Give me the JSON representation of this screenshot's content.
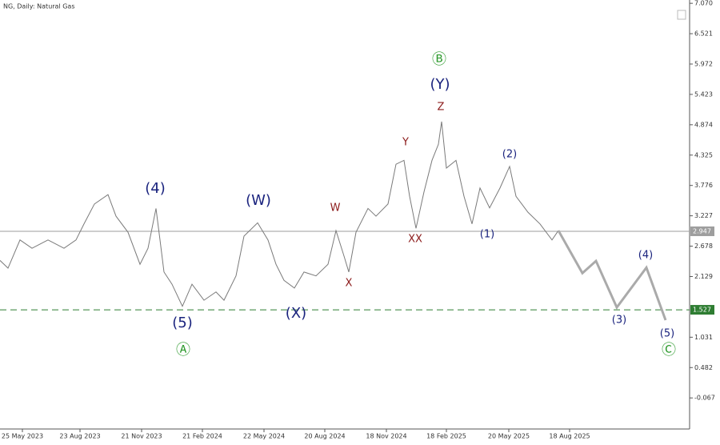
{
  "chart_data": {
    "type": "line",
    "title": "NG, Daily:  Natural Gas",
    "xlim": [
      0,
      862
    ],
    "ylim": [
      -0.6,
      7.13
    ],
    "xticks": [
      {
        "value": 28,
        "label": "25 May 2023"
      },
      {
        "value": 100,
        "label": "23 Aug 2023"
      },
      {
        "value": 177,
        "label": "21 Nov 2023"
      },
      {
        "value": 253,
        "label": "21 Feb 2024"
      },
      {
        "value": 330,
        "label": "22 May 2024"
      },
      {
        "value": 406,
        "label": "20 Aug 2024"
      },
      {
        "value": 483,
        "label": "18 Nov 2024"
      },
      {
        "value": 558,
        "label": "18 Feb 2025"
      },
      {
        "value": 636,
        "label": "20 May 2025"
      },
      {
        "value": 712,
        "label": "18 Aug 2025"
      }
    ],
    "yticks": [
      {
        "value": 7.07,
        "label": "7.070"
      },
      6.521,
      5.972,
      5.423,
      4.874,
      4.325,
      3.776,
      3.227,
      2.678,
      2.129,
      1.031,
      0.482,
      -0.067
    ],
    "series": [
      {
        "color": "#7a7a7a",
        "width": 1,
        "x": [
          0,
          10,
          25,
          40,
          60,
          80,
          95,
          105,
          118,
          135,
          145,
          160,
          175,
          185,
          195,
          200,
          205,
          215,
          228,
          240,
          255,
          270,
          280,
          295,
          305,
          322,
          335,
          345,
          355,
          368,
          380,
          395,
          410,
          420,
          430,
          436,
          445,
          460,
          470,
          485,
          495,
          505,
          512,
          520,
          530,
          540,
          548,
          552,
          558,
          570,
          580,
          590,
          600,
          612,
          625,
          637,
          645,
          660,
          675,
          690,
          698
        ],
        "values": [
          2.42,
          2.28,
          2.79,
          2.64,
          2.79,
          2.64,
          2.79,
          3.08,
          3.44,
          3.61,
          3.22,
          2.93,
          2.35,
          2.64,
          3.36,
          2.79,
          2.21,
          1.99,
          1.59,
          1.99,
          1.7,
          1.85,
          1.7,
          2.14,
          2.86,
          3.1,
          2.79,
          2.35,
          2.06,
          1.92,
          2.21,
          2.14,
          2.35,
          2.96,
          2.5,
          2.21,
          2.93,
          3.36,
          3.22,
          3.44,
          4.16,
          4.23,
          3.58,
          3.0,
          3.66,
          4.23,
          4.52,
          4.93,
          4.09,
          4.23,
          3.58,
          3.08,
          3.73,
          3.37,
          3.73,
          4.12,
          3.58,
          3.29,
          3.08,
          2.79,
          2.96
        ]
      },
      {
        "color": "#aaaaaa",
        "width": 3,
        "x": [
          698,
          728,
          745,
          771,
          808,
          832
        ],
        "values": [
          2.96,
          2.19,
          2.41,
          1.57,
          2.29,
          1.34
        ]
      }
    ],
    "levels": [
      {
        "value": 2.947,
        "color": "#9e9e9e",
        "dash": false
      },
      {
        "value": 1.527,
        "color": "#2e7d32",
        "dash": true
      }
    ],
    "annotations": [
      {
        "text": "(4)",
        "color": "#1a237e"
      },
      {
        "text": "(5)",
        "color": "#1a237e"
      },
      {
        "text": "Ⓐ",
        "color": "#2e9a2e"
      },
      {
        "text": "(W)",
        "color": "#1a237e"
      },
      {
        "text": "(X)",
        "color": "#1a237e"
      },
      {
        "text": "W",
        "color": "#8b1a1a"
      },
      {
        "text": "X",
        "color": "#8b1a1a"
      },
      {
        "text": "Y",
        "color": "#8b1a1a"
      },
      {
        "text": "XX",
        "color": "#8b1a1a"
      },
      {
        "text": "Z",
        "color": "#8b1a1a"
      },
      {
        "text": "(Y)",
        "color": "#1a237e"
      },
      {
        "text": "Ⓑ",
        "color": "#2e9a2e"
      },
      {
        "text": "(2)",
        "color": "#1a237e"
      },
      {
        "text": "(1)",
        "color": "#1a237e"
      },
      {
        "text": "(4)",
        "color": "#1a237e"
      },
      {
        "text": "(3)",
        "color": "#1a237e"
      },
      {
        "text": "(5)",
        "color": "#1a237e"
      },
      {
        "text": "Ⓒ",
        "color": "#2e9a2e"
      }
    ]
  }
}
